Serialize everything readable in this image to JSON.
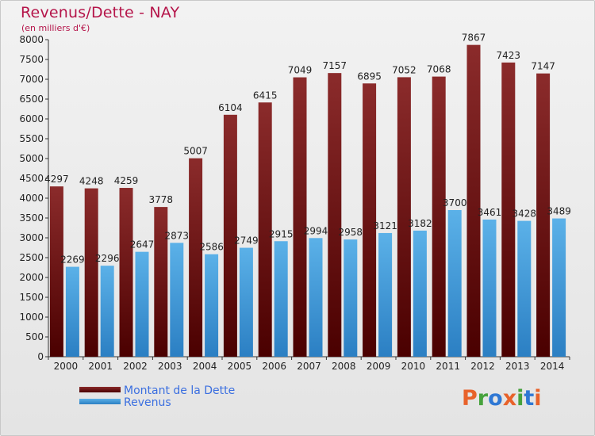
{
  "title": "Revenus/Dette - NAY",
  "subtitle": "(en milliers d'€)",
  "logo": {
    "letters": [
      "P",
      "r",
      "o",
      "x",
      "i",
      "t",
      "i"
    ]
  },
  "colors": {
    "dette_top": "#8b2b2b",
    "dette_bottom": "#4a0000",
    "revenus_top": "#5bb1e8",
    "revenus_bottom": "#2b7fc3",
    "title": "#b5154a",
    "legend_text": "#3b6fe0",
    "logo": [
      "#e8622a",
      "#46a23c",
      "#2f78d4",
      "#e8622a",
      "#46a23c",
      "#2f78d4",
      "#e8622a"
    ]
  },
  "chart_data": {
    "type": "bar",
    "categories": [
      "2000",
      "2001",
      "2002",
      "2003",
      "2004",
      "2005",
      "2006",
      "2007",
      "2008",
      "2009",
      "2010",
      "2011",
      "2012",
      "2013",
      "2014"
    ],
    "series": [
      {
        "name": "Montant de la Dette",
        "values": [
          4297,
          4248,
          4259,
          3778,
          5007,
          6104,
          6415,
          7049,
          7157,
          6895,
          7052,
          7068,
          7867,
          7423,
          7147
        ]
      },
      {
        "name": "Revenus",
        "values": [
          2269,
          2296,
          2647,
          2873,
          2586,
          2749,
          2915,
          2994,
          2958,
          3121,
          3182,
          3700,
          3461,
          3428,
          3489
        ]
      }
    ],
    "yticks": [
      0,
      500,
      1000,
      1500,
      2000,
      2500,
      3000,
      3500,
      4000,
      4500,
      5000,
      5500,
      6000,
      6500,
      7000,
      7500,
      8000
    ],
    "ylim": [
      0,
      8000
    ],
    "grid": false,
    "legend": "bottom-left"
  }
}
